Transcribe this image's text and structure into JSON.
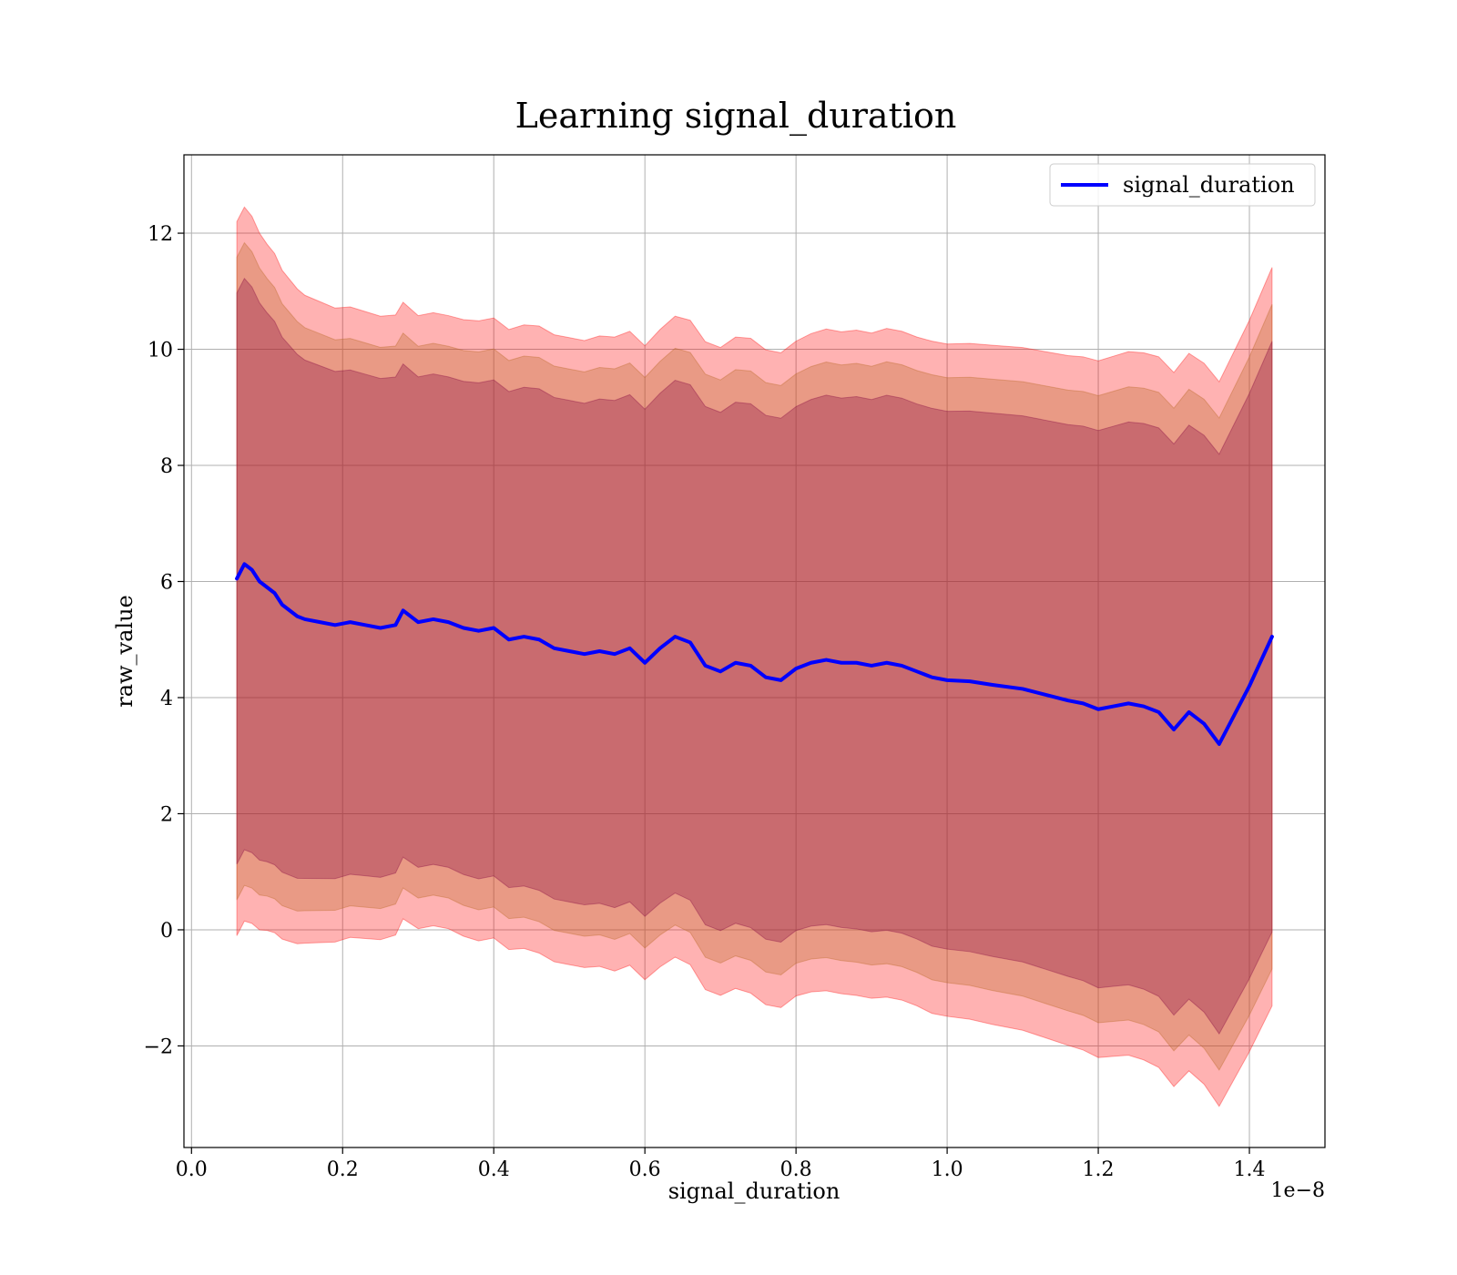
{
  "chart_data": {
    "type": "line",
    "title": "Learning signal_duration",
    "xlabel": "signal_duration",
    "ylabel": "raw_value",
    "x_offset_label": "1e−8",
    "xlim": [
      -0.01,
      1.5
    ],
    "ylim": [
      -3.75,
      13.35
    ],
    "x_ticks": [
      0.0,
      0.2,
      0.4,
      0.6,
      0.8,
      1.0,
      1.2,
      1.4
    ],
    "x_tick_labels": [
      "0.0",
      "0.2",
      "0.4",
      "0.6",
      "0.8",
      "1.0",
      "1.2",
      "1.4"
    ],
    "y_ticks": [
      -2,
      0,
      2,
      4,
      6,
      8,
      10,
      12
    ],
    "y_tick_labels": [
      "−2",
      "0",
      "2",
      "4",
      "6",
      "8",
      "10",
      "12"
    ],
    "grid": true,
    "legend_position": "top-right",
    "colors": {
      "line": "#0000ff",
      "outer_band": "#ff0000",
      "middle_band": "#b5651d",
      "inner_band": "#800040"
    },
    "series": [
      {
        "name": "signal_duration",
        "x": [
          0.06,
          0.07,
          0.08,
          0.09,
          0.1,
          0.11,
          0.12,
          0.13,
          0.14,
          0.15,
          0.17,
          0.19,
          0.21,
          0.23,
          0.25,
          0.27,
          0.28,
          0.3,
          0.32,
          0.34,
          0.36,
          0.38,
          0.4,
          0.42,
          0.44,
          0.46,
          0.48,
          0.5,
          0.52,
          0.54,
          0.56,
          0.58,
          0.6,
          0.62,
          0.64,
          0.66,
          0.68,
          0.7,
          0.72,
          0.74,
          0.76,
          0.78,
          0.8,
          0.82,
          0.84,
          0.86,
          0.88,
          0.9,
          0.92,
          0.94,
          0.96,
          0.98,
          1.0,
          1.03,
          1.06,
          1.1,
          1.13,
          1.16,
          1.18,
          1.2,
          1.22,
          1.24,
          1.26,
          1.28,
          1.3,
          1.32,
          1.34,
          1.36,
          1.38,
          1.4,
          1.43
        ],
        "values": [
          6.05,
          6.3,
          6.2,
          6.0,
          5.9,
          5.8,
          5.6,
          5.5,
          5.4,
          5.35,
          5.3,
          5.25,
          5.3,
          5.25,
          5.2,
          5.25,
          5.5,
          5.3,
          5.35,
          5.3,
          5.2,
          5.15,
          5.2,
          5.0,
          5.05,
          5.0,
          4.85,
          4.8,
          4.75,
          4.8,
          4.75,
          4.85,
          4.6,
          4.85,
          5.05,
          4.95,
          4.55,
          4.45,
          4.6,
          4.55,
          4.35,
          4.3,
          4.5,
          4.6,
          4.65,
          4.6,
          4.6,
          4.55,
          4.6,
          4.55,
          4.45,
          4.35,
          4.3,
          4.28,
          4.22,
          4.15,
          4.05,
          3.95,
          3.9,
          3.8,
          3.85,
          3.9,
          3.85,
          3.75,
          3.45,
          3.75,
          3.55,
          3.2,
          3.7,
          4.2,
          5.05
        ]
      }
    ],
    "bands": [
      {
        "sigma": 3,
        "color": "#ff0000",
        "opacity": 0.3
      },
      {
        "sigma": 2.7,
        "color": "#b5651d",
        "opacity": 0.3
      },
      {
        "sigma": 2.4,
        "color": "#800040",
        "opacity": 0.3
      }
    ],
    "band_half_width_base": [
      2.05,
      2.05,
      2.03,
      2.0,
      1.97,
      1.95,
      1.92,
      1.9,
      1.88,
      1.86,
      1.84,
      1.82,
      1.81,
      1.8,
      1.79,
      1.78,
      1.77,
      1.76,
      1.76,
      1.76,
      1.77,
      1.78,
      1.78,
      1.78,
      1.79,
      1.8,
      1.8,
      1.8,
      1.8,
      1.81,
      1.82,
      1.82,
      1.82,
      1.83,
      1.84,
      1.85,
      1.86,
      1.86,
      1.87,
      1.88,
      1.88,
      1.88,
      1.88,
      1.89,
      1.9,
      1.9,
      1.91,
      1.91,
      1.92,
      1.92,
      1.92,
      1.93,
      1.93,
      1.94,
      1.95,
      1.96,
      1.97,
      1.98,
      1.99,
      2.0,
      2.01,
      2.02,
      2.03,
      2.04,
      2.05,
      2.06,
      2.07,
      2.08,
      2.09,
      2.1,
      2.12
    ]
  }
}
